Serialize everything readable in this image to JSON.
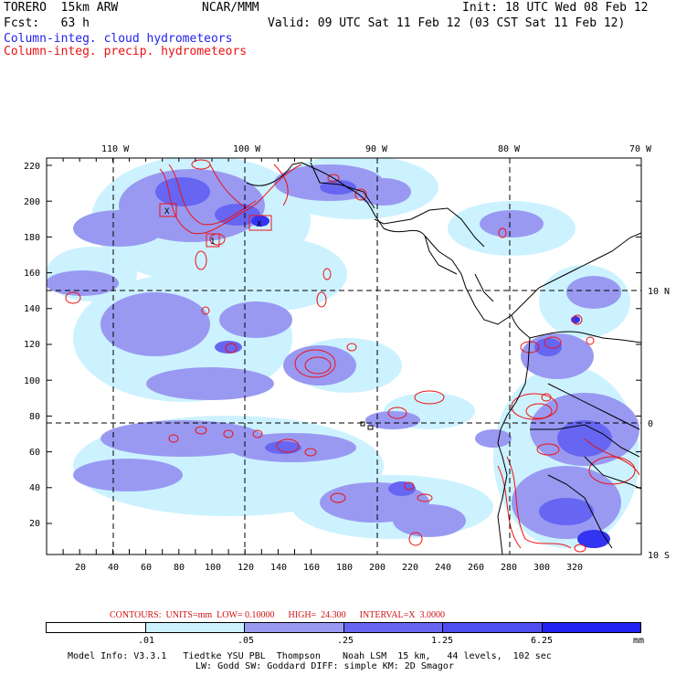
{
  "header": {
    "model_line": "TORERO  15km ARW",
    "org": "NCAR/MMM",
    "init": "Init: 18 UTC Wed 08 Feb 12",
    "fcst_line": "Fcst:   63 h",
    "valid": "Valid: 09 UTC Sat 11 Feb 12 (03 CST Sat 11 Feb 12)",
    "field1": "Column-integ. cloud hydrometeors",
    "field2": "Column-integ. precip. hydrometeors"
  },
  "map": {
    "lon_labels": [
      "110 W",
      "100 W",
      "90 W",
      "80 W",
      "70 W"
    ],
    "lat_labels": [
      "10 N",
      "0",
      "10 S"
    ],
    "y_ticks": [
      "220",
      "200",
      "180",
      "160",
      "140",
      "120",
      "100",
      "80",
      "60",
      "40",
      "20"
    ],
    "x_ticks": [
      "20",
      "40",
      "60",
      "80",
      "100",
      "120",
      "140",
      "160",
      "180",
      "200",
      "220",
      "240",
      "260",
      "280",
      "300",
      "320"
    ],
    "box_labels": [
      "X",
      "1",
      "X"
    ],
    "colors": {
      "cloud_light": "#ccf2ff",
      "cloud_mid": "#9999f2",
      "cloud_dark": "#6666f2",
      "cloud_deep": "#3333f2",
      "precip_contour": "#ee1111",
      "coast": "#000000"
    }
  },
  "contours": {
    "text": "CONTOURS:  UNITS=mm  LOW= 0.10000      HIGH=  24.300      INTERVAL=X  3.0000"
  },
  "colorbar": {
    "colors": [
      "#ffffff",
      "#ccf2ff",
      "#9999f2",
      "#6666f2",
      "#4d4df2",
      "#2222f2"
    ],
    "labels": [
      ".01",
      ".05",
      ".25",
      "1.25",
      "6.25"
    ],
    "unit": "mm"
  },
  "footer": {
    "line1": "Model Info: V3.3.1   Tiedtke YSU PBL  Thompson    Noah LSM  15 km,   44 levels,  102 sec",
    "line2": "LW: Godd SW: Goddard DIFF: simple KM: 2D Smagor"
  }
}
